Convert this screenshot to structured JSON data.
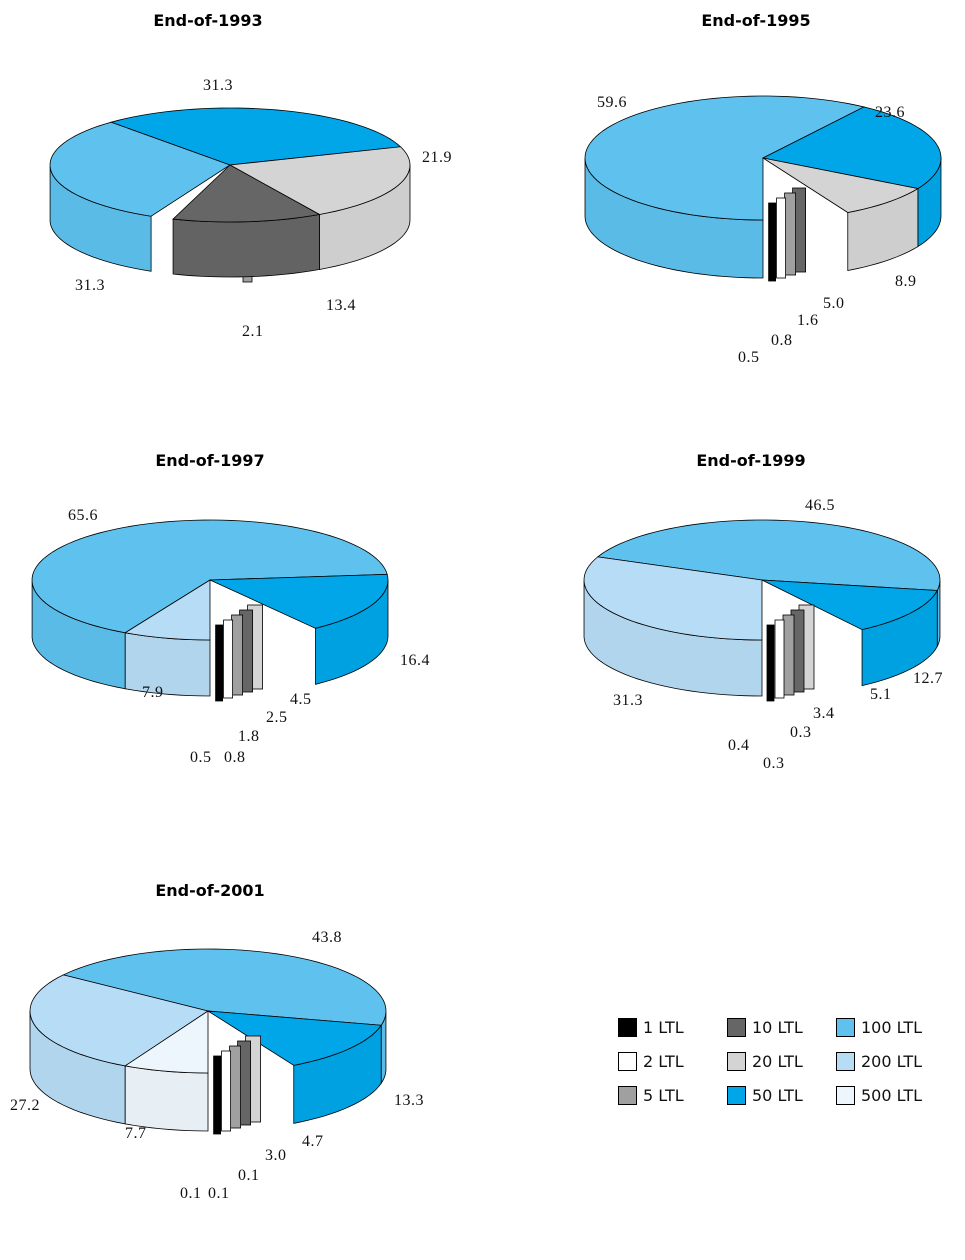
{
  "colors": {
    "1 LTL": "#000000",
    "2 LTL": "#ffffff",
    "5 LTL": "#a0a0a0",
    "10 LTL": "#666666",
    "20 LTL": "#d4d4d4",
    "50 LTL": "#00a6e8",
    "100 LTL": "#5ec1ee",
    "200 LTL": "#b7dcf5",
    "500 LTL": "#eef6fd"
  },
  "legend": {
    "items": [
      "1 LTL",
      "10 LTL",
      "100 LTL",
      "2 LTL",
      "20 LTL",
      "200 LTL",
      "5 LTL",
      "50 LTL",
      "500 LTL"
    ]
  },
  "chart_data": [
    {
      "type": "pie",
      "title": "End-of-1993",
      "categories": [
        "2 LTL",
        "5 LTL",
        "10 LTL",
        "20 LTL",
        "50 LTL",
        "100 LTL"
      ],
      "values": [
        null,
        2.1,
        13.4,
        21.9,
        31.3,
        31.3
      ],
      "labels": [
        "",
        "2.1",
        "13.4",
        "21.9",
        "31.3",
        "31.3"
      ]
    },
    {
      "type": "pie",
      "title": "End-of-1995",
      "categories": [
        "1 LTL",
        "2 LTL",
        "5 LTL",
        "10 LTL",
        "20 LTL",
        "50 LTL",
        "100 LTL"
      ],
      "values": [
        0.5,
        0.8,
        1.6,
        5.0,
        8.9,
        23.6,
        59.6
      ],
      "labels": [
        "0.5",
        "0.8",
        "1.6",
        "5.0",
        "8.9",
        "23.6",
        "59.6"
      ]
    },
    {
      "type": "pie",
      "title": "End-of-1997",
      "categories": [
        "1 LTL",
        "2 LTL",
        "5 LTL",
        "10 LTL",
        "20 LTL",
        "50 LTL",
        "100 LTL",
        "200 LTL"
      ],
      "values": [
        0.5,
        0.8,
        1.8,
        2.5,
        4.5,
        16.4,
        65.6,
        7.9
      ],
      "labels": [
        "0.5",
        "0.8",
        "1.8",
        "2.5",
        "4.5",
        "16.4",
        "65.6",
        "7.9"
      ]
    },
    {
      "type": "pie",
      "title": "End-of-1999",
      "categories": [
        "1 LTL",
        "2 LTL",
        "5 LTL",
        "10 LTL",
        "20 LTL",
        "50 LTL",
        "100 LTL",
        "200 LTL"
      ],
      "values": [
        0.4,
        0.3,
        0.3,
        3.4,
        5.1,
        12.7,
        46.5,
        31.3
      ],
      "labels": [
        "0.4",
        "0.3",
        "0.3",
        "3.4",
        "5.1",
        "12.7",
        "46.5",
        "31.3"
      ]
    },
    {
      "type": "pie",
      "title": "End-of-2001",
      "categories": [
        "1 LTL",
        "2 LTL",
        "5 LTL",
        "10 LTL",
        "20 LTL",
        "50 LTL",
        "100 LTL",
        "200 LTL",
        "500 LTL"
      ],
      "values": [
        0.1,
        0.1,
        0.1,
        3.0,
        4.7,
        13.3,
        43.8,
        27.2,
        7.7
      ],
      "labels": [
        "0.1",
        "0.1",
        "0.1",
        "3.0",
        "4.7",
        "13.3",
        "43.8",
        "27.2",
        "7.7"
      ]
    }
  ]
}
